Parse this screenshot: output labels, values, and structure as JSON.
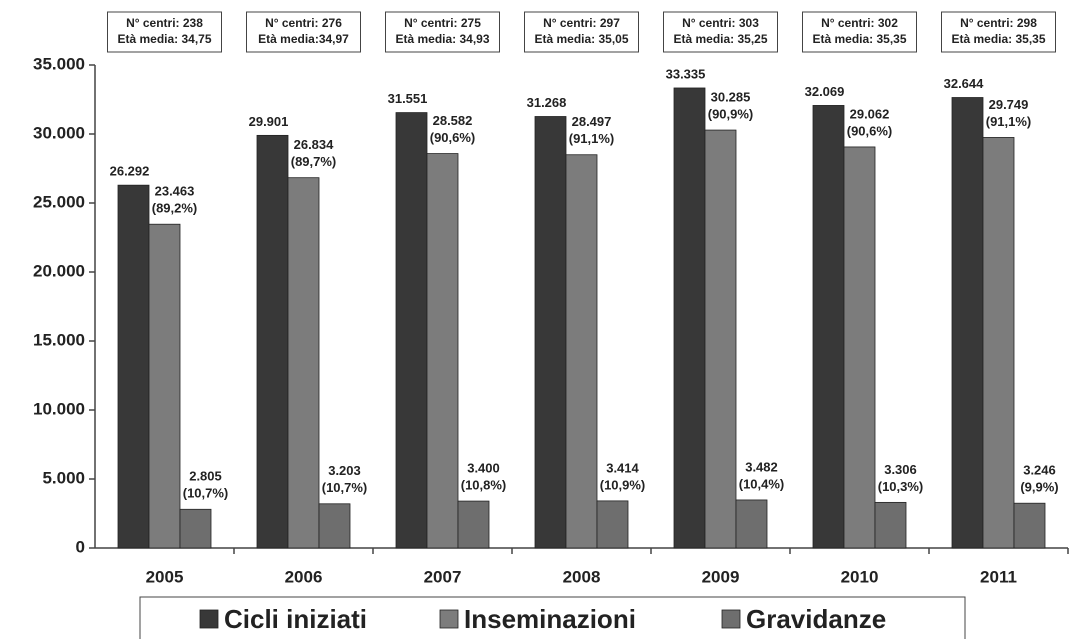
{
  "chart_data": {
    "type": "bar",
    "categories": [
      "2005",
      "2006",
      "2007",
      "2008",
      "2009",
      "2010",
      "2011"
    ],
    "series": [
      {
        "name": "Cicli iniziati",
        "color": "#383838",
        "values": [
          26292,
          29901,
          31551,
          31268,
          33335,
          32069,
          32644
        ],
        "value_labels": [
          "26.292",
          "29.901",
          "31.551",
          "31.268",
          "33.335",
          "32.069",
          "32.644"
        ]
      },
      {
        "name": "Inseminazioni",
        "color": "#7c7c7c",
        "values": [
          23463,
          26834,
          28582,
          28497,
          30285,
          29062,
          29749
        ],
        "value_labels": [
          [
            "23.463",
            "(89,2%)"
          ],
          [
            "26.834",
            "(89,7%)"
          ],
          [
            "28.582",
            "(90,6%)"
          ],
          [
            "28.497",
            "(91,1%)"
          ],
          [
            "30.285",
            "(90,9%)"
          ],
          [
            "29.062",
            "(90,6%)"
          ],
          [
            "29.749",
            "(91,1%)"
          ]
        ]
      },
      {
        "name": "Gravidanze",
        "color": "#6e6e6e",
        "values": [
          2805,
          3203,
          3400,
          3414,
          3482,
          3306,
          3246
        ],
        "value_labels": [
          [
            "2.805",
            "(10,7%)"
          ],
          [
            "3.203",
            "(10,7%)"
          ],
          [
            "3.400",
            "(10,8%)"
          ],
          [
            "3.414",
            "(10,9%)"
          ],
          [
            "3.482",
            "(10,4%)"
          ],
          [
            "3.306",
            "(10,3%)"
          ],
          [
            "3.246",
            "(9,9%)"
          ]
        ]
      }
    ],
    "annotations": [
      [
        "N° centri: 238",
        "Età media: 34,75"
      ],
      [
        "N° centri: 276",
        "Età media:34,97"
      ],
      [
        "N° centri: 275",
        "Età media: 34,93"
      ],
      [
        "N° centri: 297",
        "Età media: 35,05"
      ],
      [
        "N° centri: 303",
        "Età media: 35,25"
      ],
      [
        "N° centri: 302",
        "Età media: 35,35"
      ],
      [
        "N° centri: 298",
        "Età media: 35,35"
      ]
    ],
    "ylim": [
      0,
      35000
    ],
    "yticks": [
      0,
      {
        "value": 5000,
        "label": "5.000"
      },
      {
        "value": 10000,
        "label": "10.000"
      },
      {
        "value": 15000,
        "label": "15.000"
      },
      {
        "value": 20000,
        "label": "20.000"
      },
      {
        "value": 25000,
        "label": "25.000"
      },
      {
        "value": 30000,
        "label": "30.000"
      },
      {
        "value": 35000,
        "label": "35.000"
      }
    ]
  }
}
